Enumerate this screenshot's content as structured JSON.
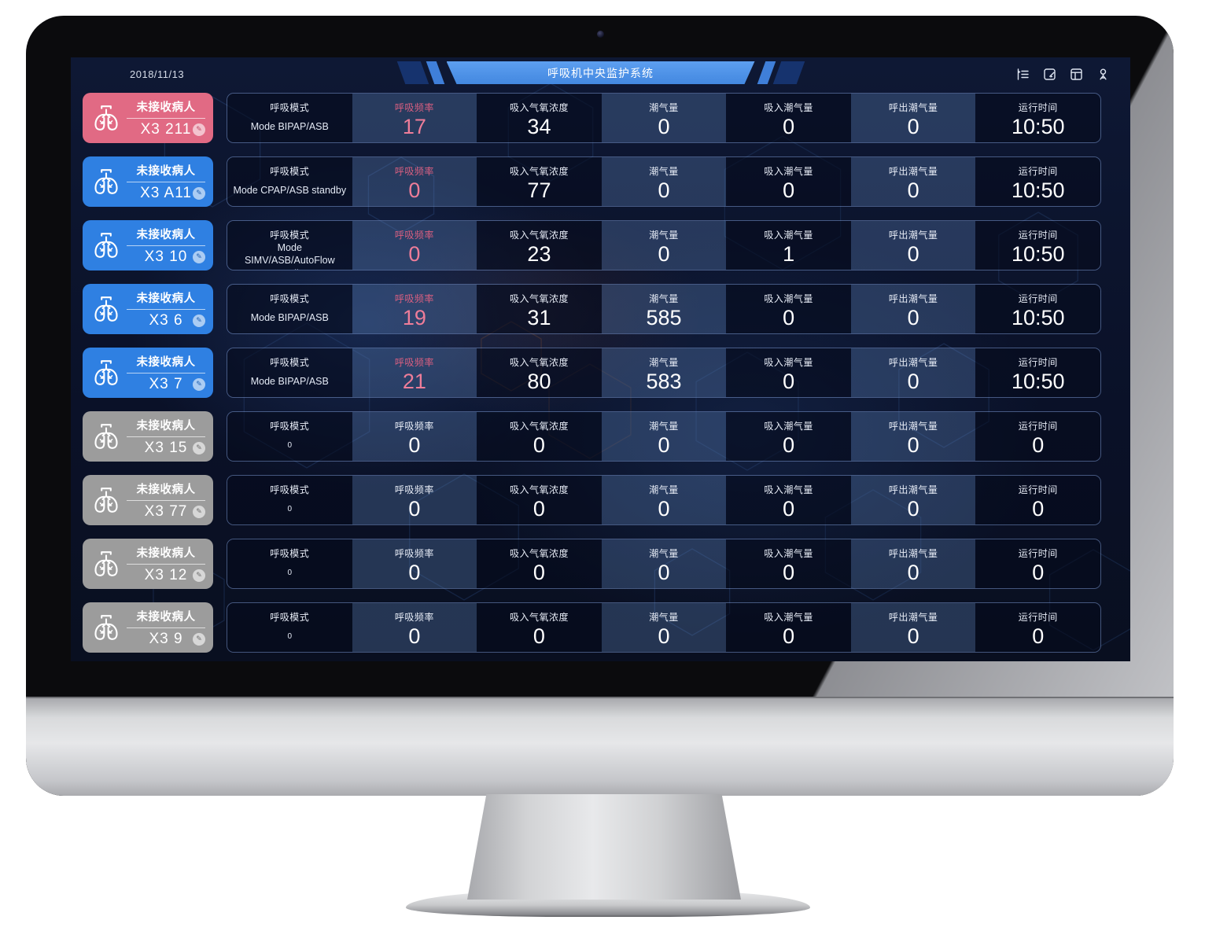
{
  "header": {
    "date": "2018/11/13",
    "title": "呼吸机中央监护系统",
    "icons": [
      {
        "name": "menu-collapse-icon"
      },
      {
        "name": "edit-note-icon"
      },
      {
        "name": "layout-icon"
      },
      {
        "name": "user-icon"
      }
    ]
  },
  "card_status_label": "未接收病人",
  "table": {
    "columns": [
      "呼吸模式",
      "呼吸频率",
      "吸入气氧浓度",
      "潮气量",
      "吸入潮气量",
      "呼出潮气量",
      "运行时间"
    ]
  },
  "devices": [
    {
      "id": "X3 211",
      "color": "pink",
      "active": true,
      "mode": "Mode BIPAP/ASB",
      "values": [
        "17",
        "34",
        "0",
        "0",
        "0",
        "10:50"
      ]
    },
    {
      "id": "X3 A11",
      "color": "blue",
      "active": true,
      "mode": "Mode CPAP/ASB standby",
      "values": [
        "0",
        "77",
        "0",
        "0",
        "0",
        "10:50"
      ]
    },
    {
      "id": "X3 10",
      "color": "blue",
      "active": true,
      "mode": "Mode SIMV/ASB/AutoFlow standby",
      "values": [
        "0",
        "23",
        "0",
        "1",
        "0",
        "10:50"
      ]
    },
    {
      "id": "X3 6",
      "color": "blue",
      "active": true,
      "mode": "Mode BIPAP/ASB",
      "values": [
        "19",
        "31",
        "585",
        "0",
        "0",
        "10:50"
      ]
    },
    {
      "id": "X3 7",
      "color": "blue",
      "active": true,
      "mode": "Mode BIPAP/ASB",
      "values": [
        "21",
        "80",
        "583",
        "0",
        "0",
        "10:50"
      ]
    },
    {
      "id": "X3 15",
      "color": "gray",
      "active": false,
      "mode": "0",
      "values": [
        "0",
        "0",
        "0",
        "0",
        "0",
        "0"
      ]
    },
    {
      "id": "X3 77",
      "color": "gray",
      "active": false,
      "mode": "0",
      "values": [
        "0",
        "0",
        "0",
        "0",
        "0",
        "0"
      ]
    },
    {
      "id": "X3 12",
      "color": "gray",
      "active": false,
      "mode": "0",
      "values": [
        "0",
        "0",
        "0",
        "0",
        "0",
        "0"
      ]
    },
    {
      "id": "X3 9",
      "color": "gray",
      "active": false,
      "mode": "0",
      "values": [
        "0",
        "0",
        "0",
        "0",
        "0",
        "0"
      ]
    }
  ],
  "colors": {
    "card_pink": "#e16a84",
    "card_blue": "#2f80e2",
    "card_gray": "#9c9c9c",
    "banner_blue": "#4e95e9",
    "value_pink": "#ee7d99",
    "header_pink": "#d95f80",
    "screen_bg": "#0a1128"
  }
}
